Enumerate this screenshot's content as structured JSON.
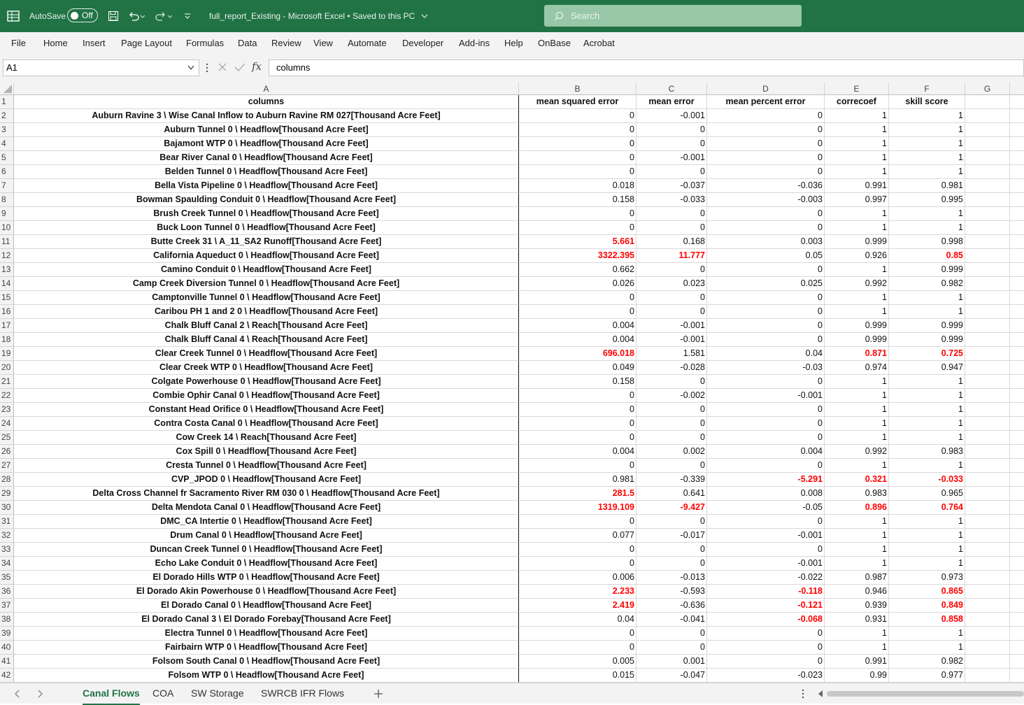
{
  "titlebar": {
    "autosave_label": "AutoSave",
    "autosave_state": "Off",
    "title": "full_report_Existing  -  Microsoft Excel  •  Saved to this PC",
    "search_placeholder": "Search"
  },
  "menu": [
    "File",
    "Home",
    "Insert",
    "Page Layout",
    "Formulas",
    "Data",
    "Review",
    "View",
    "Automate",
    "Developer",
    "Add-ins",
    "Help",
    "OnBase",
    "Acrobat"
  ],
  "formula_bar": {
    "name_box": "A1",
    "fx": "fx",
    "content": "columns"
  },
  "columns": [
    "A",
    "B",
    "C",
    "D",
    "E",
    "F",
    "G"
  ],
  "header_row": [
    "columns",
    "mean squared error",
    "mean error",
    "mean percent error",
    "correcoef",
    "skill score"
  ],
  "rows": [
    {
      "n": "2",
      "a": "Auburn Ravine  3 \\ Wise Canal Inflow to Auburn Ravine RM 027[Thousand Acre Feet]",
      "b": "0",
      "c": "-0.001",
      "d": "0",
      "e": "1",
      "f": "1"
    },
    {
      "n": "3",
      "a": "Auburn Tunnel  0 \\ Headflow[Thousand Acre Feet]",
      "b": "0",
      "c": "0",
      "d": "0",
      "e": "1",
      "f": "1"
    },
    {
      "n": "4",
      "a": "Bajamont WTP  0 \\ Headflow[Thousand Acre Feet]",
      "b": "0",
      "c": "0",
      "d": "0",
      "e": "1",
      "f": "1"
    },
    {
      "n": "5",
      "a": "Bear River Canal  0 \\ Headflow[Thousand Acre Feet]",
      "b": "0",
      "c": "-0.001",
      "d": "0",
      "e": "1",
      "f": "1"
    },
    {
      "n": "6",
      "a": "Belden Tunnel  0 \\ Headflow[Thousand Acre Feet]",
      "b": "0",
      "c": "0",
      "d": "0",
      "e": "1",
      "f": "1"
    },
    {
      "n": "7",
      "a": "Bella Vista Pipeline  0 \\ Headflow[Thousand Acre Feet]",
      "b": "0.018",
      "c": "-0.037",
      "d": "-0.036",
      "e": "0.991",
      "f": "0.981"
    },
    {
      "n": "8",
      "a": "Bowman Spaulding Conduit  0 \\ Headflow[Thousand Acre Feet]",
      "b": "0.158",
      "c": "-0.033",
      "d": "-0.003",
      "e": "0.997",
      "f": "0.995"
    },
    {
      "n": "9",
      "a": "Brush Creek Tunnel  0 \\ Headflow[Thousand Acre Feet]",
      "b": "0",
      "c": "0",
      "d": "0",
      "e": "1",
      "f": "1"
    },
    {
      "n": "10",
      "a": "Buck Loon Tunnel  0 \\ Headflow[Thousand Acre Feet]",
      "b": "0",
      "c": "0",
      "d": "0",
      "e": "1",
      "f": "1"
    },
    {
      "n": "11",
      "a": "Butte Creek  31 \\ A_11_SA2 Runoff[Thousand Acre Feet]",
      "b": "5.661",
      "c": "0.168",
      "d": "0.003",
      "e": "0.999",
      "f": "0.998",
      "red": [
        "b"
      ]
    },
    {
      "n": "12",
      "a": "California Aqueduct  0 \\ Headflow[Thousand Acre Feet]",
      "b": "3322.395",
      "c": "11.777",
      "d": "0.05",
      "e": "0.926",
      "f": "0.85",
      "red": [
        "b",
        "c",
        "f"
      ]
    },
    {
      "n": "13",
      "a": "Camino Conduit  0 \\ Headflow[Thousand Acre Feet]",
      "b": "0.662",
      "c": "0",
      "d": "0",
      "e": "1",
      "f": "0.999"
    },
    {
      "n": "14",
      "a": "Camp Creek Diversion Tunnel  0 \\ Headflow[Thousand Acre Feet]",
      "b": "0.026",
      "c": "0.023",
      "d": "0.025",
      "e": "0.992",
      "f": "0.982"
    },
    {
      "n": "15",
      "a": "Camptonville Tunnel  0 \\ Headflow[Thousand Acre Feet]",
      "b": "0",
      "c": "0",
      "d": "0",
      "e": "1",
      "f": "1"
    },
    {
      "n": "16",
      "a": "Caribou PH 1 and 2  0 \\ Headflow[Thousand Acre Feet]",
      "b": "0",
      "c": "0",
      "d": "0",
      "e": "1",
      "f": "1"
    },
    {
      "n": "17",
      "a": "Chalk Bluff Canal  2 \\ Reach[Thousand Acre Feet]",
      "b": "0.004",
      "c": "-0.001",
      "d": "0",
      "e": "0.999",
      "f": "0.999"
    },
    {
      "n": "18",
      "a": "Chalk Bluff Canal  4 \\ Reach[Thousand Acre Feet]",
      "b": "0.004",
      "c": "-0.001",
      "d": "0",
      "e": "0.999",
      "f": "0.999"
    },
    {
      "n": "19",
      "a": "Clear Creek Tunnel  0 \\ Headflow[Thousand Acre Feet]",
      "b": "696.018",
      "c": "1.581",
      "d": "0.04",
      "e": "0.871",
      "f": "0.725",
      "red": [
        "b",
        "e",
        "f"
      ]
    },
    {
      "n": "20",
      "a": "Clear Creek WTP  0 \\ Headflow[Thousand Acre Feet]",
      "b": "0.049",
      "c": "-0.028",
      "d": "-0.03",
      "e": "0.974",
      "f": "0.947"
    },
    {
      "n": "21",
      "a": "Colgate Powerhouse  0 \\ Headflow[Thousand Acre Feet]",
      "b": "0.158",
      "c": "0",
      "d": "0",
      "e": "1",
      "f": "1"
    },
    {
      "n": "22",
      "a": "Combie Ophir Canal  0 \\ Headflow[Thousand Acre Feet]",
      "b": "0",
      "c": "-0.002",
      "d": "-0.001",
      "e": "1",
      "f": "1"
    },
    {
      "n": "23",
      "a": "Constant Head Orifice  0 \\ Headflow[Thousand Acre Feet]",
      "b": "0",
      "c": "0",
      "d": "0",
      "e": "1",
      "f": "1"
    },
    {
      "n": "24",
      "a": "Contra Costa Canal  0 \\ Headflow[Thousand Acre Feet]",
      "b": "0",
      "c": "0",
      "d": "0",
      "e": "1",
      "f": "1"
    },
    {
      "n": "25",
      "a": "Cow Creek  14 \\ Reach[Thousand Acre Feet]",
      "b": "0",
      "c": "0",
      "d": "0",
      "e": "1",
      "f": "1"
    },
    {
      "n": "26",
      "a": "Cox Spill  0 \\ Headflow[Thousand Acre Feet]",
      "b": "0.004",
      "c": "0.002",
      "d": "0.004",
      "e": "0.992",
      "f": "0.983"
    },
    {
      "n": "27",
      "a": "Cresta Tunnel  0 \\ Headflow[Thousand Acre Feet]",
      "b": "0",
      "c": "0",
      "d": "0",
      "e": "1",
      "f": "1"
    },
    {
      "n": "28",
      "a": "CVP_JPOD  0 \\ Headflow[Thousand Acre Feet]",
      "b": "0.981",
      "c": "-0.339",
      "d": "-5.291",
      "e": "0.321",
      "f": "-0.033",
      "red": [
        "d",
        "e",
        "f"
      ]
    },
    {
      "n": "29",
      "a": "Delta Cross Channel fr Sacramento River RM 030  0 \\ Headflow[Thousand Acre Feet]",
      "b": "281.5",
      "c": "0.641",
      "d": "0.008",
      "e": "0.983",
      "f": "0.965",
      "red": [
        "b"
      ]
    },
    {
      "n": "30",
      "a": "Delta Mendota Canal  0 \\ Headflow[Thousand Acre Feet]",
      "b": "1319.109",
      "c": "-9.427",
      "d": "-0.05",
      "e": "0.896",
      "f": "0.764",
      "red": [
        "b",
        "c",
        "e",
        "f"
      ]
    },
    {
      "n": "31",
      "a": "DMC_CA Intertie  0 \\ Headflow[Thousand Acre Feet]",
      "b": "0",
      "c": "0",
      "d": "0",
      "e": "1",
      "f": "1"
    },
    {
      "n": "32",
      "a": "Drum Canal  0 \\ Headflow[Thousand Acre Feet]",
      "b": "0.077",
      "c": "-0.017",
      "d": "-0.001",
      "e": "1",
      "f": "1"
    },
    {
      "n": "33",
      "a": "Duncan Creek Tunnel  0 \\ Headflow[Thousand Acre Feet]",
      "b": "0",
      "c": "0",
      "d": "0",
      "e": "1",
      "f": "1"
    },
    {
      "n": "34",
      "a": "Echo Lake Conduit  0 \\ Headflow[Thousand Acre Feet]",
      "b": "0",
      "c": "0",
      "d": "-0.001",
      "e": "1",
      "f": "1"
    },
    {
      "n": "35",
      "a": "El Dorado  Hills WTP  0 \\ Headflow[Thousand Acre Feet]",
      "b": "0.006",
      "c": "-0.013",
      "d": "-0.022",
      "e": "0.987",
      "f": "0.973"
    },
    {
      "n": "36",
      "a": "El Dorado Akin Powerhouse  0 \\ Headflow[Thousand Acre Feet]",
      "b": "2.233",
      "c": "-0.593",
      "d": "-0.118",
      "e": "0.946",
      "f": "0.865",
      "red": [
        "b",
        "d",
        "f"
      ]
    },
    {
      "n": "37",
      "a": "El Dorado Canal  0 \\ Headflow[Thousand Acre Feet]",
      "b": "2.419",
      "c": "-0.636",
      "d": "-0.121",
      "e": "0.939",
      "f": "0.849",
      "red": [
        "b",
        "d",
        "f"
      ]
    },
    {
      "n": "38",
      "a": "El Dorado Canal  3 \\ El Dorado Forebay[Thousand Acre Feet]",
      "b": "0.04",
      "c": "-0.041",
      "d": "-0.068",
      "e": "0.931",
      "f": "0.858",
      "red": [
        "d",
        "f"
      ]
    },
    {
      "n": "39",
      "a": "Electra Tunnel  0 \\ Headflow[Thousand Acre Feet]",
      "b": "0",
      "c": "0",
      "d": "0",
      "e": "1",
      "f": "1"
    },
    {
      "n": "40",
      "a": "Fairbairn WTP  0 \\ Headflow[Thousand Acre Feet]",
      "b": "0",
      "c": "0",
      "d": "0",
      "e": "1",
      "f": "1"
    },
    {
      "n": "41",
      "a": "Folsom South Canal  0 \\ Headflow[Thousand Acre Feet]",
      "b": "0.005",
      "c": "0.001",
      "d": "0",
      "e": "0.991",
      "f": "0.982"
    },
    {
      "n": "42",
      "a": "Folsom WTP  0 \\ Headflow[Thousand Acre Feet]",
      "b": "0.015",
      "c": "-0.047",
      "d": "-0.023",
      "e": "0.99",
      "f": "0.977"
    }
  ],
  "sheet_tabs": [
    {
      "label": "Canal Flows",
      "active": true
    },
    {
      "label": "COA",
      "active": false
    },
    {
      "label": "SW Storage",
      "active": false
    },
    {
      "label": "SWRCB IFR Flows",
      "active": false
    }
  ],
  "colors": {
    "excel_green": "#217346",
    "error_red": "#ff0000"
  }
}
